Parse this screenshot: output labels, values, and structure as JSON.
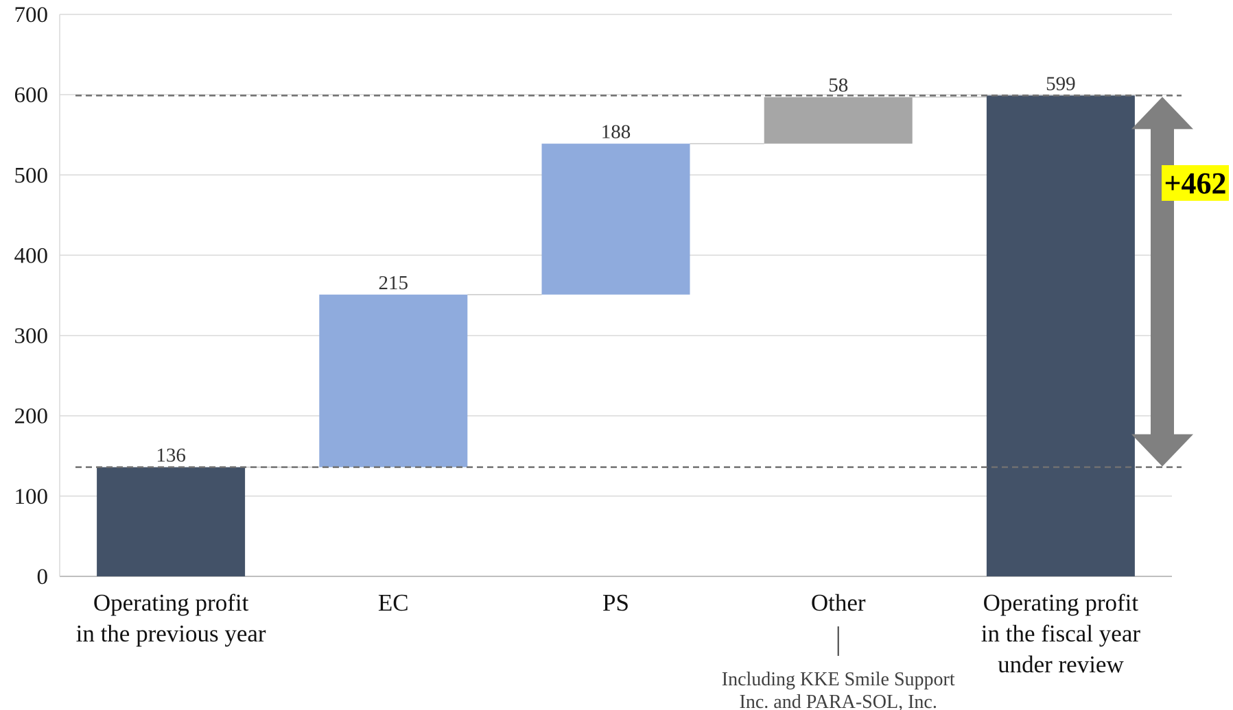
{
  "chart_data": {
    "type": "bar",
    "subtype": "waterfall",
    "categories": [
      [
        "Operating profit",
        "in the previous year"
      ],
      [
        "EC"
      ],
      [
        "PS"
      ],
      [
        "Other"
      ],
      [
        "Operating profit",
        "in the fiscal year",
        "under review"
      ]
    ],
    "bars": [
      {
        "kind": "total",
        "base": 0,
        "value": 136,
        "label": "136",
        "color": "#435268"
      },
      {
        "kind": "increase",
        "base": 136,
        "value": 215,
        "label": "215",
        "color": "#8FABDD"
      },
      {
        "kind": "increase",
        "base": 351,
        "value": 188,
        "label": "188",
        "color": "#8FABDD"
      },
      {
        "kind": "increase",
        "base": 539,
        "value": 58,
        "label": "58",
        "color": "#A6A6A6"
      },
      {
        "kind": "total",
        "base": 0,
        "value": 599,
        "label": "599",
        "color": "#435268"
      }
    ],
    "ylim": [
      0,
      700
    ],
    "yticks": [
      0,
      100,
      200,
      300,
      400,
      500,
      600,
      700
    ],
    "grid": true,
    "reference_lines": [
      136,
      599
    ],
    "annotations": {
      "difference": {
        "text": "+462",
        "from": 136,
        "to": 599,
        "highlight": "#FFFF00",
        "arrow_color": "#808080"
      },
      "note": {
        "text": [
          "Including KKE Smile Support",
          "Inc. and PARA-SOL, Inc."
        ],
        "category_index": 3
      }
    }
  }
}
